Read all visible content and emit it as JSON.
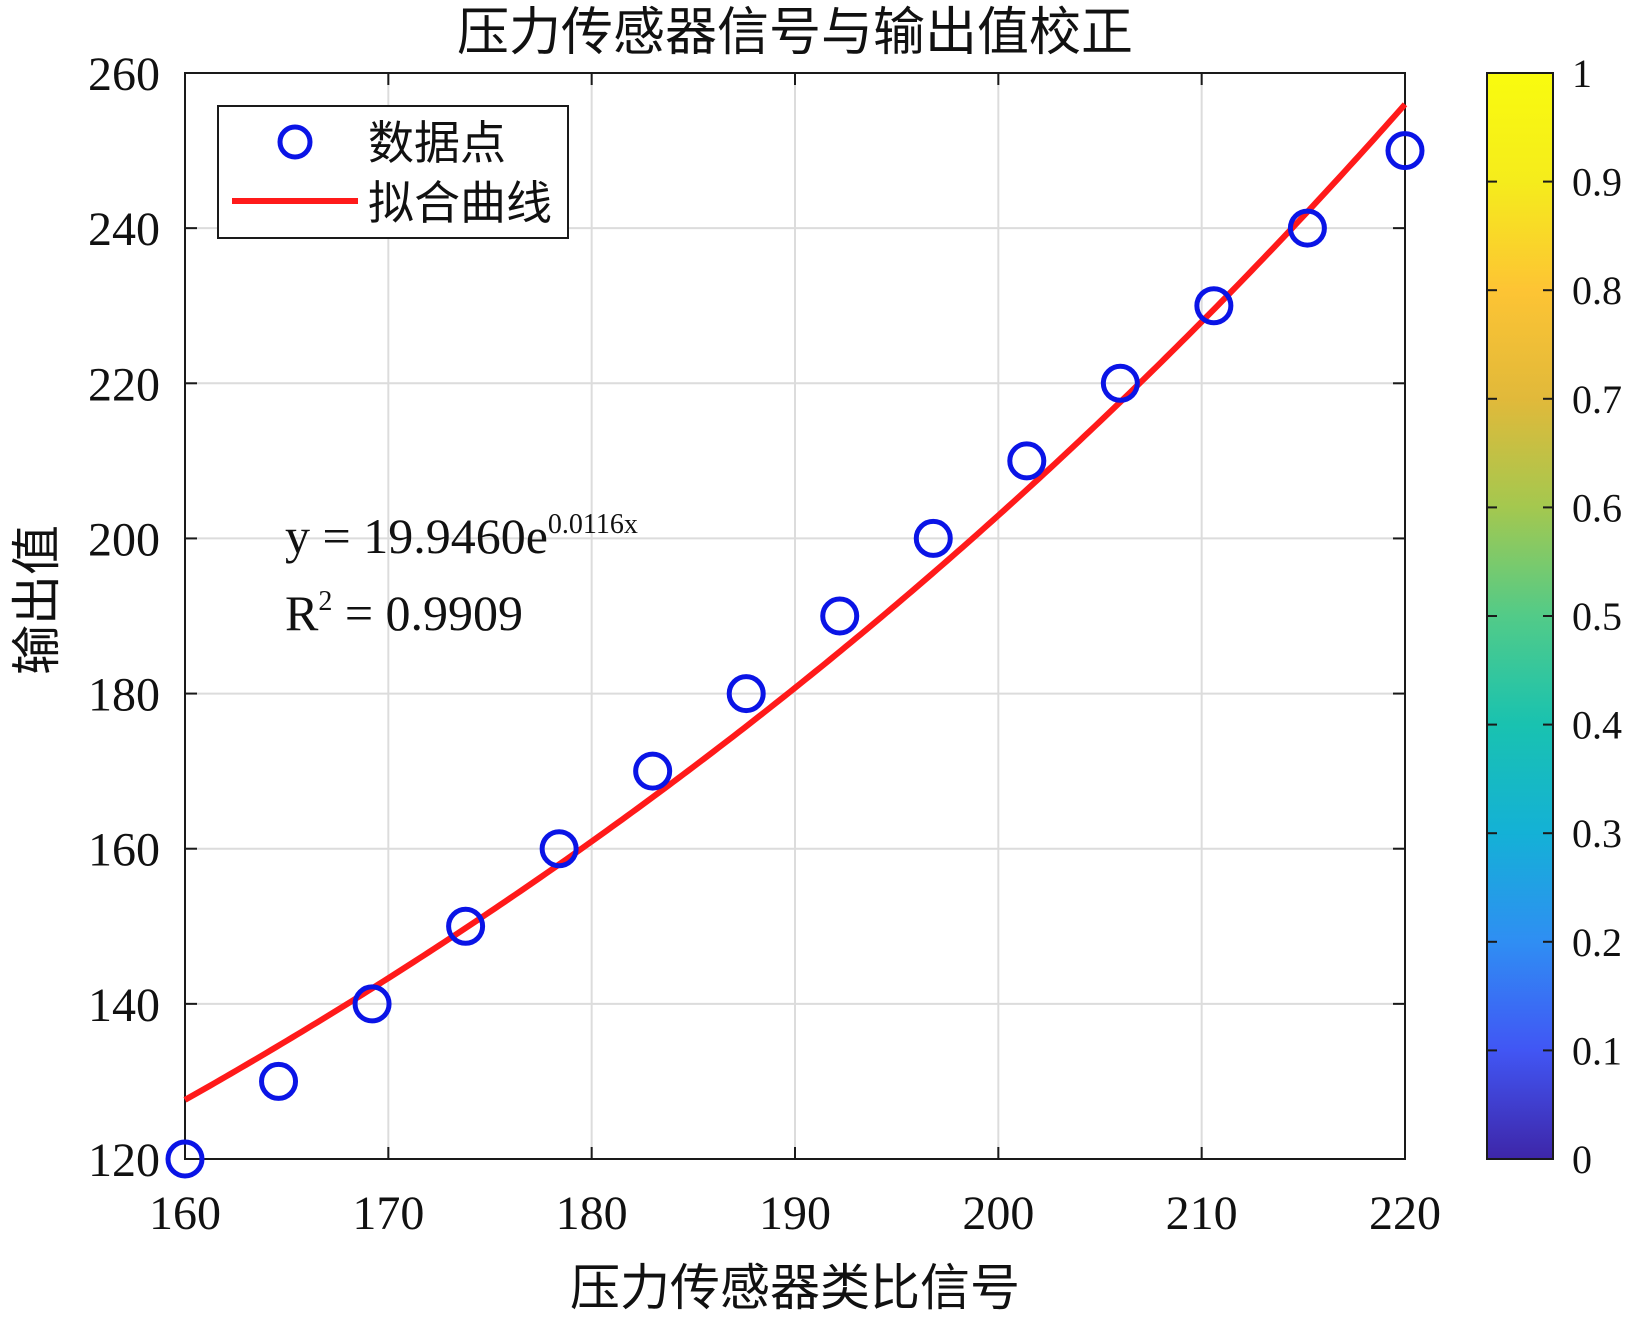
{
  "chart_data": {
    "type": "scatter",
    "title": "压力传感器信号与输出值校正",
    "xlabel": "压力传感器类比信号",
    "ylabel": "输出值",
    "xlim": [
      160,
      220
    ],
    "ylim": [
      120,
      260
    ],
    "xticks": [
      160,
      170,
      180,
      190,
      200,
      210,
      220
    ],
    "yticks": [
      120,
      140,
      160,
      180,
      200,
      220,
      240,
      260
    ],
    "grid": true,
    "legend_position": "top-left",
    "series": [
      {
        "name": "数据点",
        "marker": "circle",
        "color": "#0a14e6",
        "x": [
          160.0,
          164.6,
          169.2,
          173.8,
          178.4,
          183.0,
          187.6,
          192.2,
          196.8,
          201.4,
          206.0,
          210.6,
          215.2,
          220.0
        ],
        "y": [
          120,
          130,
          140,
          150,
          160,
          170,
          180,
          190,
          200,
          210,
          220,
          230,
          240,
          250
        ]
      },
      {
        "name": "拟合曲线",
        "line": "solid",
        "color": "#ff1a1a",
        "equation": {
          "a": 19.946,
          "b": 0.0116,
          "x_range": [
            160,
            220
          ]
        }
      }
    ],
    "annotation": {
      "equation_base": "y = 19.9460e",
      "equation_exponent": "0.0116x",
      "r2_base": "R",
      "r2_exponent": "2",
      "r2_rest": " = 0.9909"
    },
    "colorbar": {
      "ticks": [
        "0",
        "0.1",
        "0.2",
        "0.3",
        "0.4",
        "0.5",
        "0.6",
        "0.7",
        "0.8",
        "0.9",
        "1"
      ],
      "colormap": [
        "#3e26a8",
        "#4156f4",
        "#2f8ef3",
        "#14b1d6",
        "#19c2b0",
        "#52cb88",
        "#a4c84f",
        "#e1b93a",
        "#fdc434",
        "#f5ec1c",
        "#f9fb0e"
      ]
    }
  }
}
